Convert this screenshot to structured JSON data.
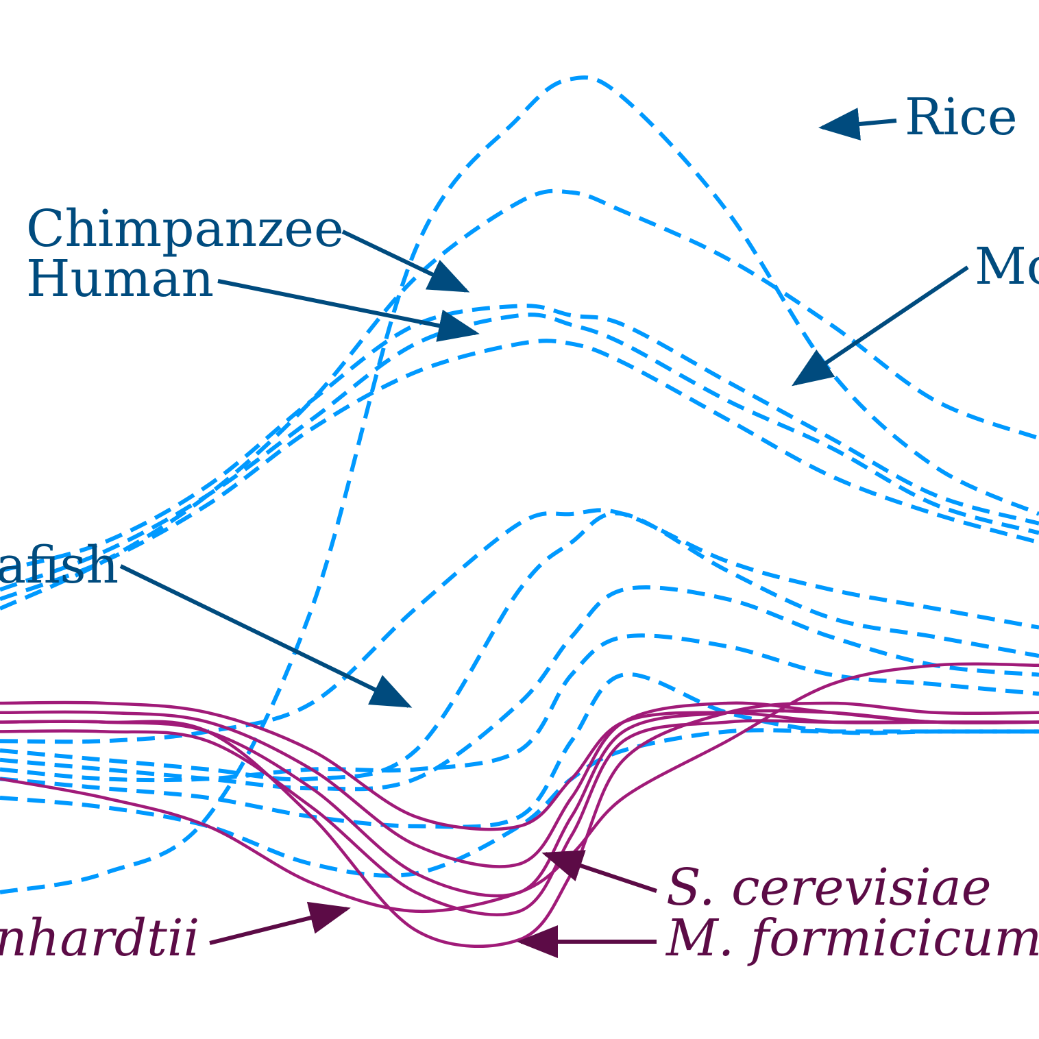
{
  "colors": {
    "dashed_series": "#0099ff",
    "solid_series": "#a01a78",
    "label_blue": "#004b7e",
    "label_purple": "#5c0b46"
  },
  "chart_data": {
    "type": "line",
    "title": "",
    "xlabel": "",
    "ylabel": "",
    "grid": false,
    "axes_visible": false,
    "note": "Dashed blue curves and solid purple curves drawn without axes; values are y-heights in 0-100 relative units sampled at x = 0..100.",
    "x": [
      0,
      10,
      20,
      30,
      40,
      50,
      55,
      60,
      70,
      80,
      90,
      100
    ],
    "series": [
      {
        "name": "Rice",
        "style": "dashed",
        "values": [
          10,
          12,
          18,
          40,
          78,
          92,
          96,
          94,
          82,
          65,
          55,
          50
        ]
      },
      {
        "name": "",
        "style": "dashed",
        "values": [
          40,
          45,
          52,
          62,
          75,
          83,
          84,
          82,
          77,
          70,
          62,
          58
        ]
      },
      {
        "name": "Chimpanzee",
        "style": "dashed",
        "values": [
          44,
          47,
          53,
          62,
          70,
          72,
          71,
          70,
          64,
          58,
          52,
          49
        ]
      },
      {
        "name": "Human",
        "style": "dashed",
        "values": [
          42,
          46,
          52,
          60,
          68,
          71,
          70,
          68,
          62,
          57,
          51,
          48
        ]
      },
      {
        "name": "Mouse",
        "style": "dashed",
        "values": [
          41,
          45,
          51,
          59,
          65,
          68,
          68,
          66,
          60,
          54,
          50,
          47
        ]
      },
      {
        "name": "Zebrafish",
        "style": "dashed",
        "values": [
          26,
          26,
          27,
          30,
          40,
          49,
          50,
          50,
          45,
          42,
          40,
          38
        ]
      },
      {
        "name": "",
        "style": "dashed",
        "values": [
          25,
          24,
          23,
          22,
          25,
          42,
          47,
          50,
          44,
          39,
          37,
          35
        ]
      },
      {
        "name": "",
        "style": "dashed",
        "values": [
          24,
          23,
          22,
          21,
          22,
          30,
          37,
          42,
          41,
          37,
          34,
          33
        ]
      },
      {
        "name": "",
        "style": "dashed",
        "values": [
          23,
          22,
          22,
          23,
          23,
          25,
          33,
          37,
          36,
          33,
          32,
          31
        ]
      },
      {
        "name": "",
        "style": "dashed",
        "values": [
          22,
          21,
          20,
          18,
          17,
          18,
          26,
          33,
          29,
          27,
          27,
          27
        ]
      },
      {
        "name": "",
        "style": "dashed",
        "values": [
          20,
          19,
          17,
          13,
          12,
          17,
          22,
          25,
          27,
          27,
          27,
          27
        ]
      },
      {
        "name": "S. cerevisiae",
        "style": "solid",
        "values": [
          30,
          30,
          29,
          25,
          18,
          17,
          22,
          28,
          29,
          28,
          28,
          28
        ]
      },
      {
        "name": "",
        "style": "solid",
        "values": [
          29,
          29,
          28,
          23,
          15,
          13,
          20,
          28,
          30,
          29,
          28,
          28
        ]
      },
      {
        "name": "",
        "style": "solid",
        "values": [
          28,
          28,
          27,
          21,
          12,
          10,
          18,
          27,
          29,
          29,
          28,
          28
        ]
      },
      {
        "name": "",
        "style": "solid",
        "values": [
          27,
          27,
          26,
          19,
          10,
          8,
          16,
          26,
          28,
          28,
          28,
          28
        ]
      },
      {
        "name": "M. formicicum",
        "style": "solid",
        "values": [
          28,
          28,
          27,
          18,
          6,
          5,
          12,
          24,
          29,
          30,
          29,
          29
        ]
      },
      {
        "name": "C. reinhardtii",
        "style": "solid",
        "values": [
          22,
          20,
          17,
          11,
          8,
          10,
          14,
          20,
          26,
          32,
          34,
          34
        ]
      }
    ]
  },
  "labels": {
    "rice": "Rice",
    "chimpanzee": "Chimpanzee",
    "human": "Human",
    "mouse": "Mo",
    "zebrafish": "afish",
    "s_cerevisiae": "S. cerevisiae",
    "m_formicicum": "M. formicicum",
    "c_reinhardtii": "nhardtii"
  }
}
